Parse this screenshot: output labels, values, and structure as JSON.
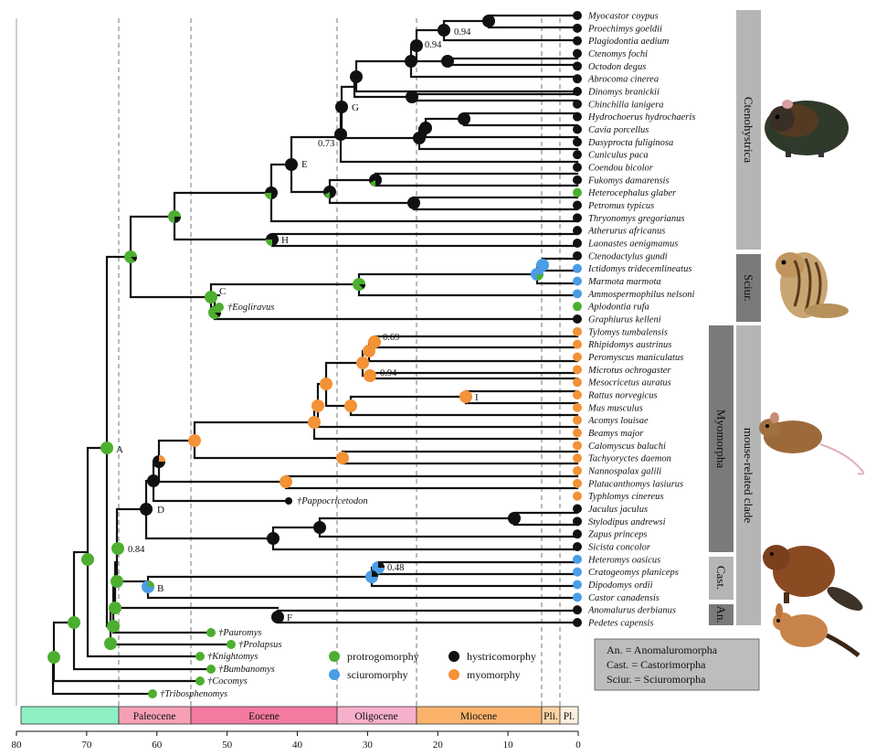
{
  "taxa": [
    "Myocastor coypus",
    "Proechimys goeldii",
    "Plagiodontia aedium",
    "Ctenomys fochi",
    "Octodon degus",
    "Abrocoma cinerea",
    "Dinomys branickii",
    "Chinchilla lanigera",
    "Hydrochoerus hydrochaeris",
    "Cavia porcellus",
    "Dasyprocta fuliginosa",
    "Cuniculus paca",
    "Coendou bicolor",
    "Fukomys damarensis",
    "Heterocephalus glaber",
    "Petromus typicus",
    "Thryonomys gregorianus",
    "Atherurus africanus",
    "Laonastes aenigmamus",
    "Ctenodactylus gundi",
    "Ictidomys tridecemlineatus",
    "Marmota marmota",
    "Ammospermophilus nelsoni",
    "Aplodontia rufa",
    "Graphiurus kelleni",
    "Tylomys tumbalensis",
    "Rhipidomys austrinus",
    "Peromyscus maniculatus",
    "Microtus ochrogaster",
    "Mesocricetus auratus",
    "Rattus norvegicus",
    "Mus musculus",
    "Acomys louisae",
    "Beamys major",
    "Calomyscus baluchi",
    "Tachyoryctes daemon",
    "Nannospalax galili",
    "Platacanthomys lasiurus",
    "Typhlomys cinereus",
    "Jaculus jaculus",
    "Stylodipus andrewsi",
    "Zapus princeps",
    "Sicista concolor",
    "Heteromys oasicus",
    "Cratogeomys planiceps",
    "Dipodomys ordii",
    "Castor canadensis",
    "Anomalurus derbianus",
    "Pedetes capensis"
  ],
  "tip_states": [
    "h",
    "h",
    "h",
    "h",
    "h",
    "h",
    "h",
    "h",
    "h",
    "h",
    "h",
    "h",
    "h",
    "h",
    "p",
    "h",
    "h",
    "h",
    "h",
    "h",
    "s",
    "s",
    "s",
    "p",
    "h",
    "m",
    "m",
    "m",
    "m",
    "m",
    "m",
    "m",
    "m",
    "m",
    "m",
    "m",
    "m",
    "m",
    "m",
    "h",
    "h",
    "h",
    "h",
    "s",
    "s",
    "s",
    "s",
    "h",
    "h"
  ],
  "fossils": [
    "†Eogliravus",
    "†Pappocricetodon",
    "†Pauromys",
    "†Prolapsus",
    "†Knightomys",
    "†Bumbanomys",
    "†Cocomys",
    "†Tribosphenomys"
  ],
  "support_values": {
    "n1": "0.94",
    "n2": "0.94",
    "n3": "0.73",
    "n4": "0.69",
    "n5": "0.94",
    "n6": "0.48",
    "n7": "0.84"
  },
  "node_labels": {
    "A": "A",
    "B": "B",
    "C": "C",
    "D": "D",
    "E": "E",
    "F": "F",
    "G": "G",
    "H": "H",
    "I": "I"
  },
  "clades": {
    "ctenohystrica": "Ctenohystrica",
    "sciur": "Sciur.",
    "myomorpha": "Myomorpha",
    "mouse_related": "mouse-related clade",
    "cast": "Cast.",
    "an": "An."
  },
  "legend": {
    "protrogomorphy": "protrogomorphy",
    "hystricomorphy": "hystricomorphy",
    "sciuromorphy": "sciuromorphy",
    "myomorphy": "myomorphy"
  },
  "abbreviations": [
    "An. = Anomaluromorpha",
    "Cast. = Castorimorpha",
    "Sciur. = Sciuromorpha"
  ],
  "epochs": [
    "Paleocene",
    "Eocene",
    "Oligocene",
    "Miocene",
    "Pli.",
    "Pl."
  ],
  "axis_ticks": [
    "80",
    "70",
    "60",
    "50",
    "40",
    "30",
    "20",
    "10",
    "0"
  ],
  "colors": {
    "protrogomorphy": "#4caf2f",
    "hystricomorphy": "#111111",
    "sciuromorphy": "#4a9de6",
    "myomorphy": "#f39236",
    "cretaceous": "#8ef0c2",
    "paleocene": "#f6a0b6",
    "eocene": "#f47aa0",
    "oligocene": "#f7b0cc",
    "miocene": "#fbb36c",
    "pliocene": "#fdd3a5",
    "pleistocene": "#fff0dd",
    "sidebar_light": "#b5b5b5",
    "sidebar_dark": "#7a7a7a"
  }
}
